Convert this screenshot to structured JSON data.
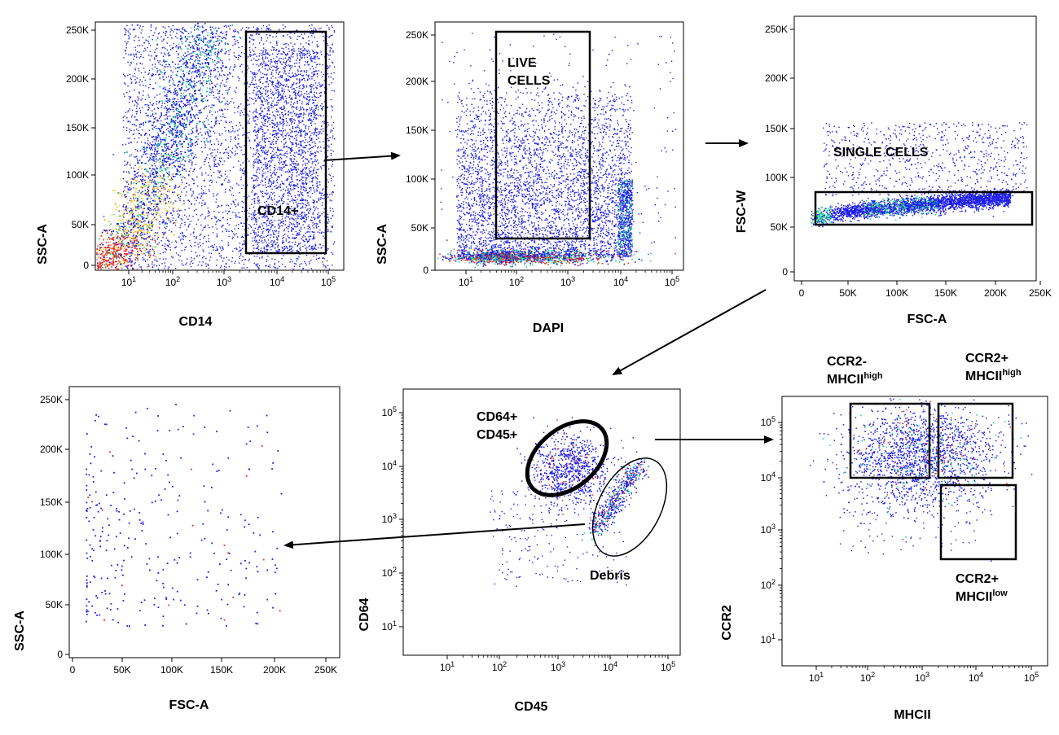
{
  "chart_data": [
    {
      "type": "scatter",
      "xlabel": "CD14",
      "ylabel": "SSC-A",
      "x_scale": "log",
      "x_ticks": [
        "10",
        "10",
        "10",
        "10",
        "10"
      ],
      "x_tick_exp": [
        "1",
        "2",
        "3",
        "4",
        "5"
      ],
      "y_ticks": [
        "0",
        "50K",
        "100K",
        "150K",
        "200K",
        "250K"
      ],
      "xlim": [
        3,
        150000
      ],
      "ylim": [
        0,
        260000
      ],
      "gates": [
        {
          "label": "CD14+",
          "shape": "rectangle",
          "x": [
            2800,
            100000
          ],
          "y": [
            15000,
            247000
          ]
        }
      ],
      "density_ridge": [
        [
          3,
          2000
        ],
        [
          15,
          12000
        ],
        [
          50,
          30000
        ],
        [
          110,
          80000
        ],
        [
          180,
          150000
        ],
        [
          250,
          230000
        ]
      ]
    },
    {
      "type": "scatter",
      "xlabel": "DAPI",
      "ylabel": "SSC-A",
      "x_scale": "log",
      "x_ticks": [
        "10",
        "10",
        "10",
        "10",
        "10"
      ],
      "x_tick_exp": [
        "1",
        "2",
        "3",
        "4",
        "5"
      ],
      "y_ticks": [
        "0",
        "50K",
        "100K",
        "150K",
        "200K",
        "250K"
      ],
      "xlim": [
        3,
        150000
      ],
      "ylim": [
        0,
        260000
      ],
      "gates": [
        {
          "label_lines": [
            "LIVE",
            "CELLS"
          ],
          "shape": "rectangle",
          "x": [
            40,
            3000
          ],
          "y": [
            33000,
            249000
          ]
        }
      ]
    },
    {
      "type": "scatter",
      "xlabel": "FSC-A",
      "ylabel": "FSC-W",
      "x_scale": "linear",
      "x_ticks": [
        "0",
        "50K",
        "100K",
        "150K",
        "200K",
        "250K"
      ],
      "y_ticks": [
        "0",
        "50K",
        "100K",
        "150K",
        "200K",
        "250K"
      ],
      "xlim": [
        0,
        260000
      ],
      "ylim": [
        0,
        260000
      ],
      "gates": [
        {
          "label": "SINGLE CELLS",
          "shape": "rectangle",
          "x": [
            15000,
            235000
          ],
          "y": [
            49000,
            83000
          ]
        }
      ]
    },
    {
      "type": "scatter",
      "xlabel": "FSC-A",
      "ylabel": "SSC-A",
      "x_scale": "linear",
      "x_ticks": [
        "0",
        "50K",
        "100K",
        "150K",
        "200K",
        "250K"
      ],
      "y_ticks": [
        "0",
        "50K",
        "100K",
        "150K",
        "200K",
        "250K"
      ],
      "xlim": [
        0,
        260000
      ],
      "ylim": [
        0,
        260000
      ]
    },
    {
      "type": "scatter",
      "xlabel": "CD45",
      "ylabel": "CD64",
      "x_scale": "log",
      "y_scale": "log",
      "x_ticks": [
        "10",
        "10",
        "10",
        "10",
        "10"
      ],
      "x_tick_exp": [
        "1",
        "2",
        "3",
        "4",
        "5"
      ],
      "y_ticks": [
        "10",
        "10",
        "10",
        "10",
        "10"
      ],
      "y_tick_exp": [
        "1",
        "2",
        "3",
        "4",
        "5"
      ],
      "xlim": [
        3,
        150000
      ],
      "ylim": [
        3,
        150000
      ],
      "gates": [
        {
          "label_lines": [
            "CD64+",
            "CD45+"
          ],
          "shape": "ellipse",
          "center": [
            1500,
            8000
          ],
          "bold": true
        },
        {
          "label": "Debris",
          "shape": "ellipse",
          "center": [
            12000,
            2000
          ],
          "bold": false
        }
      ]
    },
    {
      "type": "scatter",
      "xlabel": "MHCII",
      "ylabel": "CCR2",
      "x_scale": "log",
      "y_scale": "log",
      "x_ticks": [
        "10",
        "10",
        "10",
        "10",
        "10"
      ],
      "x_tick_exp": [
        "1",
        "2",
        "3",
        "4",
        "5"
      ],
      "y_ticks": [
        "10",
        "10",
        "10",
        "10",
        "10"
      ],
      "y_tick_exp": [
        "1",
        "2",
        "3",
        "4",
        "5"
      ],
      "xlim": [
        3,
        150000
      ],
      "ylim": [
        3,
        150000
      ],
      "gates": [
        {
          "label_lines": [
            "CCR2-",
            "MHCII"
          ],
          "label_sup": "high",
          "shape": "rectangle",
          "x": [
            50,
            1500
          ],
          "y": [
            9000,
            200000
          ]
        },
        {
          "label_lines": [
            "CCR2+",
            "MHCII"
          ],
          "label_sup": "high",
          "shape": "rectangle",
          "x": [
            2000,
            50000
          ],
          "y": [
            9000,
            200000
          ]
        },
        {
          "label_lines": [
            "CCR2+",
            "MHCII"
          ],
          "label_sup": "low",
          "shape": "rectangle",
          "x": [
            2500,
            50000
          ],
          "y": [
            280,
            7000
          ]
        }
      ]
    }
  ],
  "colors": {
    "dots_low": "#1e1ee6",
    "density_mid": "#19d28c",
    "density_high": "#f0281e",
    "axis": "#000000"
  }
}
